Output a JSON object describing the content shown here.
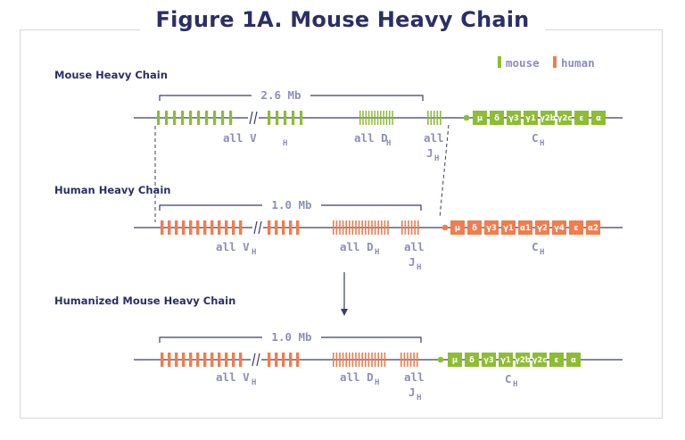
{
  "title": "Figure 1A. Mouse Heavy Chain",
  "legend": {
    "mouse": "mouse",
    "human": "human"
  },
  "colors": {
    "mouse": "#8cbd32",
    "human": "#f07d4e",
    "navy": "#2b2f66",
    "label": "#8e8ebd",
    "line": "#3a3d66"
  },
  "sections": [
    {
      "title": "Mouse Heavy Chain",
      "size": "2.6 Mb",
      "v_label": "all V",
      "d_label": "all D",
      "j_label": "all",
      "j_sub": "J",
      "c_label": "C",
      "h": "H",
      "segments": [
        "μ",
        "δ",
        "γ3",
        "γ1",
        "γ2b",
        "γ2c",
        "ε",
        "α"
      ]
    },
    {
      "title": "Human Heavy Chain",
      "size": "1.0 Mb",
      "v_label": "all V",
      "d_label": "all D",
      "j_label": "all",
      "j_sub": "J",
      "c_label": "C",
      "h": "H",
      "segments": [
        "μ",
        "δ",
        "γ3",
        "γ1",
        "α1",
        "γ2",
        "γ4",
        "ε",
        "α2"
      ]
    },
    {
      "title": "Humanized Mouse Heavy Chain",
      "size": "1.0 Mb",
      "v_label": "all V",
      "d_label": "all D",
      "j_label": "all",
      "j_sub": "J",
      "c_label": "C",
      "h": "H",
      "segments": [
        "μ",
        "δ",
        "γ3",
        "γ1",
        "γ2b",
        "γ2c",
        "ε",
        "α"
      ]
    }
  ]
}
